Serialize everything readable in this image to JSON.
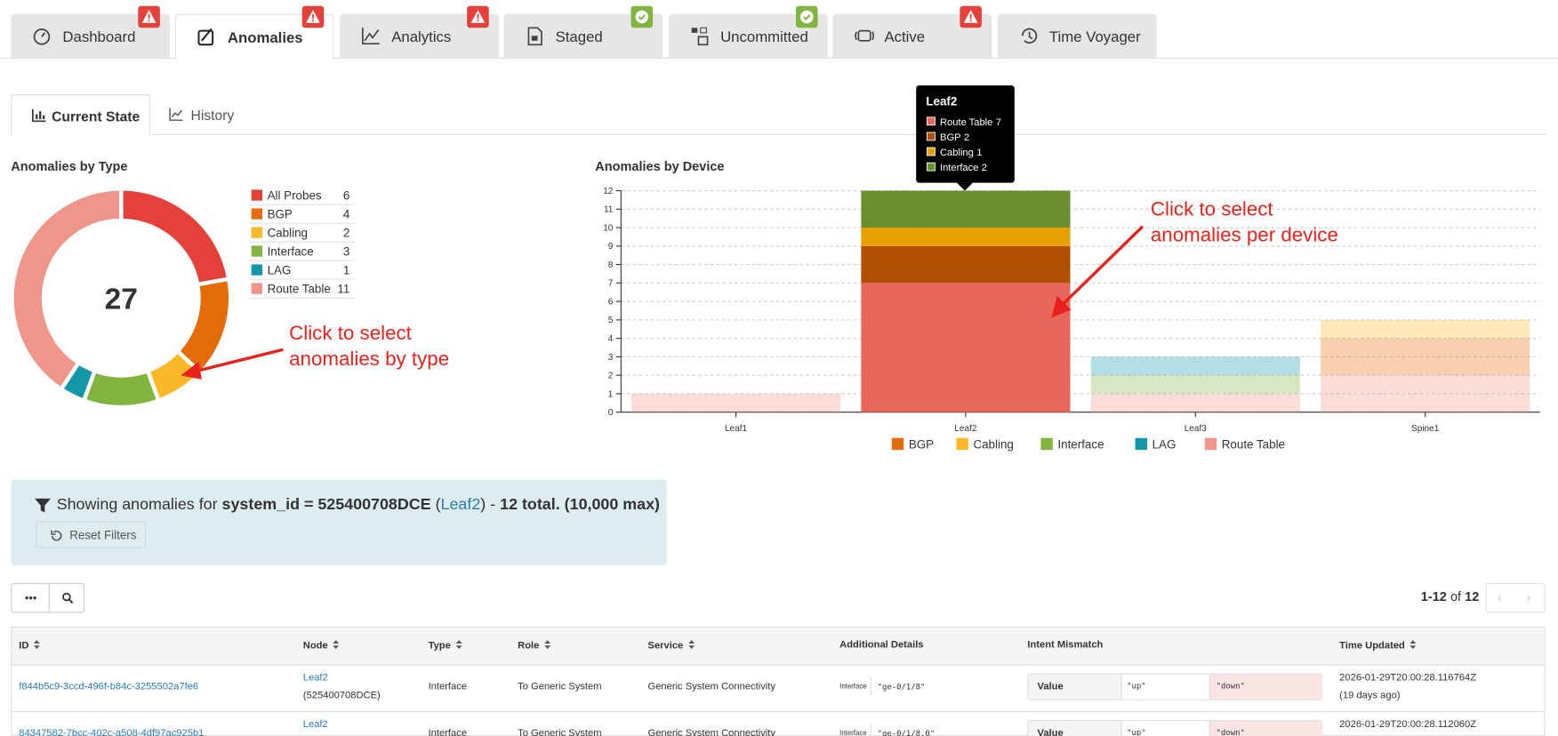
{
  "tabs": [
    {
      "label": "Dashboard",
      "status": "alert"
    },
    {
      "label": "Anomalies",
      "status": "alert",
      "active": true
    },
    {
      "label": "Analytics",
      "status": "alert"
    },
    {
      "label": "Staged",
      "status": "ok"
    },
    {
      "label": "Uncommitted",
      "status": "ok"
    },
    {
      "label": "Active",
      "status": "alert"
    },
    {
      "label": "Time Voyager"
    }
  ],
  "subtabs": [
    {
      "label": "Current State",
      "active": true
    },
    {
      "label": "History"
    }
  ],
  "donut": {
    "type": "pie",
    "title": "Anomalies by Type",
    "total": 27,
    "categories": [
      "All Probes",
      "BGP",
      "Cabling",
      "Interface",
      "LAG",
      "Route Table"
    ],
    "values": [
      6,
      4,
      2,
      3,
      1,
      11
    ],
    "colors": [
      "#e5413a",
      "#e36c09",
      "#fbb829",
      "#82b440",
      "#1497a7",
      "#f0958a"
    ]
  },
  "bar_chart": {
    "type": "bar",
    "title": "Anomalies by Device",
    "categories": [
      "Leaf1",
      "Leaf2",
      "Leaf3",
      "Spine1"
    ],
    "ylim": [
      0,
      12
    ],
    "yticks": [
      0,
      1,
      2,
      3,
      4,
      5,
      6,
      7,
      8,
      9,
      10,
      11,
      12
    ],
    "grid": true,
    "stacked": true,
    "selected_category": "Leaf2",
    "legend_order": [
      1,
      2,
      3,
      4,
      0
    ],
    "series": [
      {
        "name": "Route Table",
        "color": "#f0958a",
        "selected_color": "#e8675a",
        "values": [
          1,
          7,
          1,
          2
        ]
      },
      {
        "name": "BGP",
        "color": "#e36c09",
        "selected_color": "#b04e02",
        "values": [
          0,
          2,
          0,
          2
        ]
      },
      {
        "name": "Cabling",
        "color": "#fbb829",
        "selected_color": "#e6a100",
        "values": [
          0,
          1,
          0,
          1
        ]
      },
      {
        "name": "Interface",
        "color": "#82b440",
        "selected_color": "#6a8f2e",
        "values": [
          0,
          2,
          1,
          0
        ]
      },
      {
        "name": "LAG",
        "color": "#1497a7",
        "selected_color": "#0f7f8c",
        "values": [
          0,
          0,
          1,
          0
        ]
      }
    ]
  },
  "annotations": [
    {
      "lines": [
        "Click to select",
        "anomalies by type"
      ]
    },
    {
      "lines": [
        "Click to select",
        "anomalies per device"
      ]
    }
  ],
  "filter": {
    "prefix": "Showing anomalies for",
    "field": "system_id = 525400708DCE",
    "open": "(",
    "node": "Leaf2",
    "close": ") -",
    "total": "12 total.",
    "max": "(10,000 max)",
    "reset": "Reset Filters"
  },
  "pagination": {
    "range": "1-12",
    "of": "of",
    "total": "12"
  },
  "table": {
    "headers": [
      "ID",
      "Node",
      "Type",
      "Role",
      "Service",
      "Additional Details",
      "Intent Mismatch",
      "Time Updated"
    ],
    "sortable": [
      true,
      true,
      true,
      true,
      true,
      false,
      false,
      true
    ],
    "rows": [
      {
        "id": "f844b5c9-3ccd-496f-b84c-3255502a7fe6",
        "node": "Leaf2",
        "node_id": "(525400708DCE)",
        "type": "Interface",
        "role": "To Generic System",
        "service": "Generic System Connectivity",
        "detail_key": "Interface",
        "detail_value": "\"ge-0/1/8\"",
        "mismatch_key": "Value",
        "intended": "\"up\"",
        "actual": "\"down\"",
        "time": "2026-01-29T20:00:28.116764Z",
        "age": "(19 days ago)"
      },
      {
        "id": "84347582-7bcc-402c-a508-4df97ac925b1",
        "node": "Leaf2",
        "type": "Interface",
        "role": "To Generic System",
        "service": "Generic System Connectivity",
        "detail_key": "Interface",
        "detail_value": "\"ge-0/1/8.0\"",
        "mismatch_key": "Value",
        "intended": "\"up\"",
        "actual": "\"down\"",
        "time": "2026-01-29T20:00:28.112060Z"
      }
    ]
  }
}
